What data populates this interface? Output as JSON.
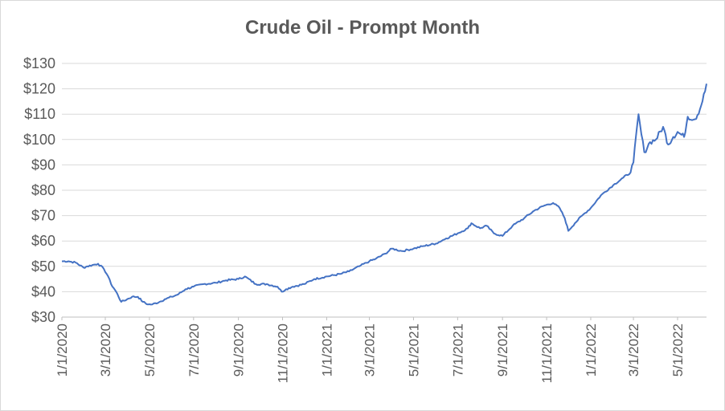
{
  "chart_data": {
    "type": "line",
    "title": "Crude Oil - Prompt Month",
    "xlabel": "",
    "ylabel": "",
    "x_tick_labels": [
      "1/1/2020",
      "3/1/2020",
      "5/1/2020",
      "7/1/2020",
      "9/1/2020",
      "11/1/2020",
      "1/1/2021",
      "3/1/2021",
      "5/1/2021",
      "7/1/2021",
      "9/1/2021",
      "11/1/2021",
      "1/1/2022",
      "3/1/2022",
      "5/1/2022"
    ],
    "y_tick_labels": [
      "$30",
      "$40",
      "$50",
      "$60",
      "$70",
      "$80",
      "$90",
      "$100",
      "$110",
      "$120",
      "$130"
    ],
    "ylim": [
      30,
      130
    ],
    "xlim": [
      "2020-01-01",
      "2022-06-10"
    ],
    "grid": "horizontal",
    "legend": "none",
    "line_color": "#4472c4",
    "series": [
      {
        "x": [
          "2020-01-01",
          "2020-01-10",
          "2020-01-20",
          "2020-01-31",
          "2020-02-05",
          "2020-02-12",
          "2020-02-20",
          "2020-02-28",
          "2020-03-05",
          "2020-03-09",
          "2020-03-16",
          "2020-03-23",
          "2020-03-31",
          "2020-04-07",
          "2020-04-15",
          "2020-04-22",
          "2020-04-29",
          "2020-05-05",
          "2020-05-15",
          "2020-05-22",
          "2020-06-01",
          "2020-06-10",
          "2020-06-20",
          "2020-07-01",
          "2020-07-15",
          "2020-08-01",
          "2020-08-15",
          "2020-09-01",
          "2020-09-10",
          "2020-09-25",
          "2020-10-10",
          "2020-10-25",
          "2020-10-31",
          "2020-11-06",
          "2020-11-15",
          "2020-12-01",
          "2020-12-15",
          "2021-01-01",
          "2021-01-20",
          "2021-02-01",
          "2021-02-15",
          "2021-03-01",
          "2021-03-10",
          "2021-03-23",
          "2021-04-01",
          "2021-04-15",
          "2021-05-01",
          "2021-05-15",
          "2021-06-01",
          "2021-06-15",
          "2021-07-01",
          "2021-07-15",
          "2021-07-20",
          "2021-08-01",
          "2021-08-10",
          "2021-08-20",
          "2021-09-01",
          "2021-09-15",
          "2021-10-01",
          "2021-10-15",
          "2021-10-29",
          "2021-11-10",
          "2021-11-19",
          "2021-11-26",
          "2021-12-01",
          "2021-12-10",
          "2021-12-20",
          "2022-01-01",
          "2022-01-15",
          "2022-02-01",
          "2022-02-15",
          "2022-02-25",
          "2022-03-01",
          "2022-03-08",
          "2022-03-12",
          "2022-03-16",
          "2022-03-24",
          "2022-04-01",
          "2022-04-11",
          "2022-04-18",
          "2022-04-25",
          "2022-05-01",
          "2022-05-10",
          "2022-05-15",
          "2022-05-25",
          "2022-06-01",
          "2022-06-08",
          "2022-06-10"
        ],
        "y": [
          52,
          52,
          51.5,
          49.5,
          50,
          50.5,
          51,
          49,
          46,
          43,
          40,
          36,
          37,
          38,
          38,
          36,
          35,
          35,
          36,
          37,
          38,
          39,
          41,
          42,
          43,
          43.5,
          44.5,
          45,
          46,
          43,
          43,
          42,
          40,
          41,
          42,
          43,
          45,
          46,
          47,
          48,
          50,
          52,
          53,
          55,
          57,
          56,
          57,
          58,
          59,
          61,
          63,
          65,
          67,
          65,
          66,
          63,
          62,
          66,
          69,
          72,
          74,
          75,
          73,
          69,
          64,
          67,
          70,
          73,
          78,
          82,
          85,
          87,
          91,
          110,
          102,
          95,
          99,
          100,
          105,
          98,
          101,
          103,
          101,
          109,
          108,
          112,
          119,
          122
        ]
      }
    ]
  }
}
